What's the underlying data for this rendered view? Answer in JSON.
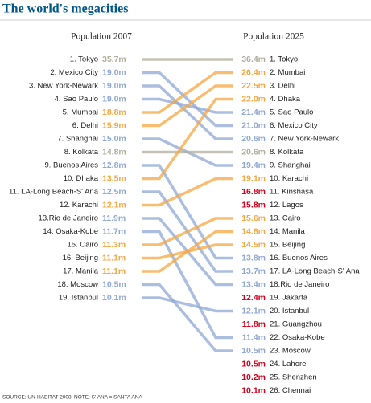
{
  "chart_data": {
    "type": "slope",
    "title": "The world's megacities",
    "source": "SOURCE: UN-HABITAT 2008",
    "note": "NOTE: S' ANA = SANTA ANA",
    "columns": [
      {
        "title": "Population 2007",
        "categories": [
          "1. Tokyo",
          "2. Mexico City",
          "3. New York-Newark",
          "4. Sao Paulo",
          "5. Mumbai",
          "6. Delhi",
          "7. Shanghai",
          "8. Kolkata",
          "9. Buenos Aires",
          "10. Dhaka",
          "11. LA-Long Beach-S' Ana",
          "12. Karachi",
          "13.Rio de Janeiro",
          "14. Osaka-Kobe",
          "15. Cairo",
          "16. Beijing",
          "17. Manila",
          "18. Moscow",
          "19. Istanbul"
        ],
        "values": [
          35.7,
          19.0,
          19.0,
          19.0,
          18.8,
          15.9,
          15.0,
          14.8,
          12.8,
          13.5,
          12.5,
          12.1,
          11.9,
          11.7,
          11.3,
          11.1,
          11.1,
          10.5,
          10.1
        ],
        "value_labels": [
          "35.7m",
          "19.0m",
          "19.0m",
          "19.0m",
          "18.8m",
          "15.9m",
          "15.0m",
          "14.8m",
          "12.8m",
          "13.5m",
          "12.5m",
          "12.1m",
          "11.9m",
          "11.7m",
          "11.3m",
          "11.1m",
          "11.1m",
          "10.5m",
          "10.1m"
        ],
        "colors": [
          "#b1ad9c",
          "#8fa8d6",
          "#8fa8d6",
          "#8fa8d6",
          "#f5a742",
          "#f5a742",
          "#8fa8d6",
          "#b1ad9c",
          "#8fa8d6",
          "#f5a742",
          "#8fa8d6",
          "#f5a742",
          "#8fa8d6",
          "#8fa8d6",
          "#f5a742",
          "#f5a742",
          "#f5a742",
          "#8fa8d6",
          "#8fa8d6"
        ]
      },
      {
        "title": "Population 2025",
        "categories": [
          "1. Tokyo",
          "2. Mumbai",
          "3. Delhi",
          "4. Dhaka",
          "5. Sao Paulo",
          "6. Mexico City",
          "7. New York-Newark",
          "8. Kolkata",
          "9. Shanghai",
          "10. Karachi",
          "11. Kinshasa",
          "12. Lagos",
          "13. Cairo",
          "14. Manila",
          "15. Beijing",
          "16. Buenos Aires",
          "17. LA-Long Beach-S' Ana",
          "18.Rio de Janeiro",
          "19. Jakarta",
          "20. Istanbul",
          "21. Guangzhou",
          "22. Osaka-Kobe",
          "23. Moscow",
          "24. Lahore",
          "25. Shenzhen",
          "26. Chennai"
        ],
        "values": [
          36.4,
          26.4,
          22.5,
          22.0,
          21.4,
          21.0,
          20.6,
          20.6,
          19.4,
          19.1,
          16.8,
          15.8,
          15.6,
          14.8,
          14.5,
          13.8,
          13.7,
          13.4,
          12.4,
          12.1,
          11.8,
          11.4,
          10.5,
          10.5,
          10.2,
          10.1
        ],
        "value_labels": [
          "36.4m",
          "26.4m",
          "22.5m",
          "22.0m",
          "21.4m",
          "21.0m",
          "20.6m",
          "20.6m",
          "19.4m",
          "19.1m",
          "16.8m",
          "15.8m",
          "15.6m",
          "14.8m",
          "14.5m",
          "13.8m",
          "13.7m",
          "13.4m",
          "12.4m",
          "12.1m",
          "11.8m",
          "11.4m",
          "10.5m",
          "10.5m",
          "10.2m",
          "10.1m"
        ],
        "colors": [
          "#b1ad9c",
          "#f5a742",
          "#f5a742",
          "#f5a742",
          "#8fa8d6",
          "#8fa8d6",
          "#8fa8d6",
          "#b1ad9c",
          "#8fa8d6",
          "#f5a742",
          "#d6001c",
          "#d6001c",
          "#f5a742",
          "#f5a742",
          "#f5a742",
          "#8fa8d6",
          "#8fa8d6",
          "#8fa8d6",
          "#d6001c",
          "#8fa8d6",
          "#d6001c",
          "#8fa8d6",
          "#8fa8d6",
          "#d6001c",
          "#d6001c",
          "#d6001c"
        ]
      }
    ]
  }
}
